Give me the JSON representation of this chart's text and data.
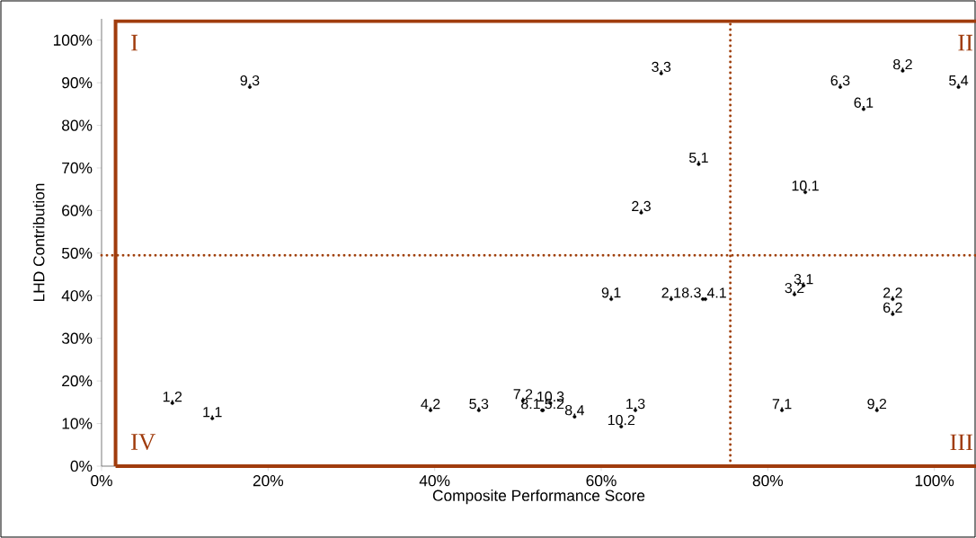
{
  "chart_data": {
    "type": "scatter",
    "xlabel": "Composite Performance Score",
    "ylabel": "LHD Contribution",
    "marker": "circle",
    "series": [
      {
        "name": "9.3",
        "color": "#000000",
        "x": [
          17.8
        ],
        "values": [
          89.0
        ]
      },
      {
        "name": "3.3",
        "color": "#000000",
        "x": [
          67.2
        ],
        "values": [
          92.2
        ]
      },
      {
        "name": "6.3",
        "color": "#000000",
        "x": [
          88.7
        ],
        "values": [
          89.0
        ]
      },
      {
        "name": "8.2",
        "color": "#000000",
        "x": [
          96.2
        ],
        "values": [
          92.8
        ]
      },
      {
        "name": "5.4",
        "color": "#000000",
        "x": [
          102.9
        ],
        "values": [
          89.0
        ]
      },
      {
        "name": "6.1",
        "color": "#000000",
        "x": [
          91.5
        ],
        "values": [
          83.8
        ]
      },
      {
        "name": "5.1",
        "color": "#000000",
        "x": [
          71.7
        ],
        "values": [
          70.9
        ]
      },
      {
        "name": "10.1",
        "color": "#000000",
        "x": [
          84.5
        ],
        "values": [
          64.3
        ]
      },
      {
        "name": "2.3",
        "color": "#000000",
        "x": [
          64.8
        ],
        "values": [
          59.5
        ]
      },
      {
        "name": "3.1",
        "color": "#000000",
        "x": [
          84.3
        ],
        "values": [
          42.4
        ]
      },
      {
        "name": "3.2",
        "color": "#000000",
        "x": [
          83.2
        ],
        "values": [
          40.3
        ]
      },
      {
        "name": "2.2",
        "color": "#000000",
        "x": [
          95.0
        ],
        "values": [
          39.2
        ]
      },
      {
        "name": "6.2",
        "color": "#000000",
        "x": [
          95.0
        ],
        "values": [
          35.7
        ]
      },
      {
        "name": "9.1",
        "color": "#000000",
        "x": [
          61.2
        ],
        "values": [
          39.2
        ]
      },
      {
        "name": "2.1",
        "color": "#000000",
        "x": [
          68.4
        ],
        "values": [
          39.2
        ]
      },
      {
        "name": "8.3",
        "color": "#000000",
        "x": [
          72.2
        ],
        "values": [
          39.2
        ]
      },
      {
        "name": "4.1",
        "color": "#000000",
        "x": [
          72.5
        ],
        "values": [
          39.2
        ]
      },
      {
        "name": "1.2",
        "color": "#000000",
        "x": [
          8.5
        ],
        "values": [
          14.8
        ]
      },
      {
        "name": "1.1",
        "color": "#000000",
        "x": [
          13.3
        ],
        "values": [
          11.2
        ]
      },
      {
        "name": "4.2",
        "color": "#000000",
        "x": [
          39.5
        ],
        "values": [
          13.1
        ]
      },
      {
        "name": "5.3",
        "color": "#000000",
        "x": [
          45.3
        ],
        "values": [
          13.1
        ]
      },
      {
        "name": "7.2",
        "color": "#000000",
        "x": [
          50.6
        ],
        "values": [
          15.4
        ]
      },
      {
        "name": "10.3",
        "color": "#000000",
        "x": [
          53.9
        ],
        "values": [
          14.8
        ]
      },
      {
        "name": "8.1",
        "color": "#000000",
        "x": [
          52.9
        ],
        "values": [
          13.1
        ]
      },
      {
        "name": "5.2",
        "color": "#000000",
        "x": [
          53.0
        ],
        "values": [
          13.1
        ]
      },
      {
        "name": "8.4",
        "color": "#000000",
        "x": [
          56.8
        ],
        "values": [
          11.6
        ]
      },
      {
        "name": "1.3",
        "color": "#000000",
        "x": [
          64.1
        ],
        "values": [
          13.1
        ]
      },
      {
        "name": "10.2",
        "color": "#000000",
        "x": [
          62.4
        ],
        "values": [
          9.3
        ]
      },
      {
        "name": "7.1",
        "color": "#000000",
        "x": [
          81.7
        ],
        "values": [
          13.1
        ]
      },
      {
        "name": "9.2",
        "color": "#000000",
        "x": [
          93.1
        ],
        "values": [
          13.1
        ]
      }
    ],
    "xlim": [
      0,
      105
    ],
    "ylim": [
      0,
      105
    ],
    "xticks": [
      {
        "value": 0,
        "label": "0%"
      },
      {
        "value": 20,
        "label": "20%"
      },
      {
        "value": 40,
        "label": "40%"
      },
      {
        "value": 60,
        "label": "60%"
      },
      {
        "value": 80,
        "label": "80%"
      },
      {
        "value": 100,
        "label": "100%"
      }
    ],
    "yticks": [
      {
        "value": 0,
        "label": "0%"
      },
      {
        "value": 10,
        "label": "10%"
      },
      {
        "value": 20,
        "label": "20%"
      },
      {
        "value": 30,
        "label": "30%"
      },
      {
        "value": 40,
        "label": "40%"
      },
      {
        "value": 50,
        "label": "50%"
      },
      {
        "value": 60,
        "label": "60%"
      },
      {
        "value": 70,
        "label": "70%"
      },
      {
        "value": 80,
        "label": "80%"
      },
      {
        "value": 90,
        "label": "90%"
      },
      {
        "value": 100,
        "label": "100%"
      }
    ],
    "ref_lines": [
      {
        "axis": "x",
        "value": 75.5,
        "color": "#a0410d",
        "line_style": "dotted"
      },
      {
        "axis": "y",
        "value": 49.5,
        "color": "#a0410d",
        "line_style": "dotted"
      }
    ],
    "annotations": [
      "I",
      "II",
      "III",
      "IV"
    ],
    "grid": false,
    "legend": false
  }
}
